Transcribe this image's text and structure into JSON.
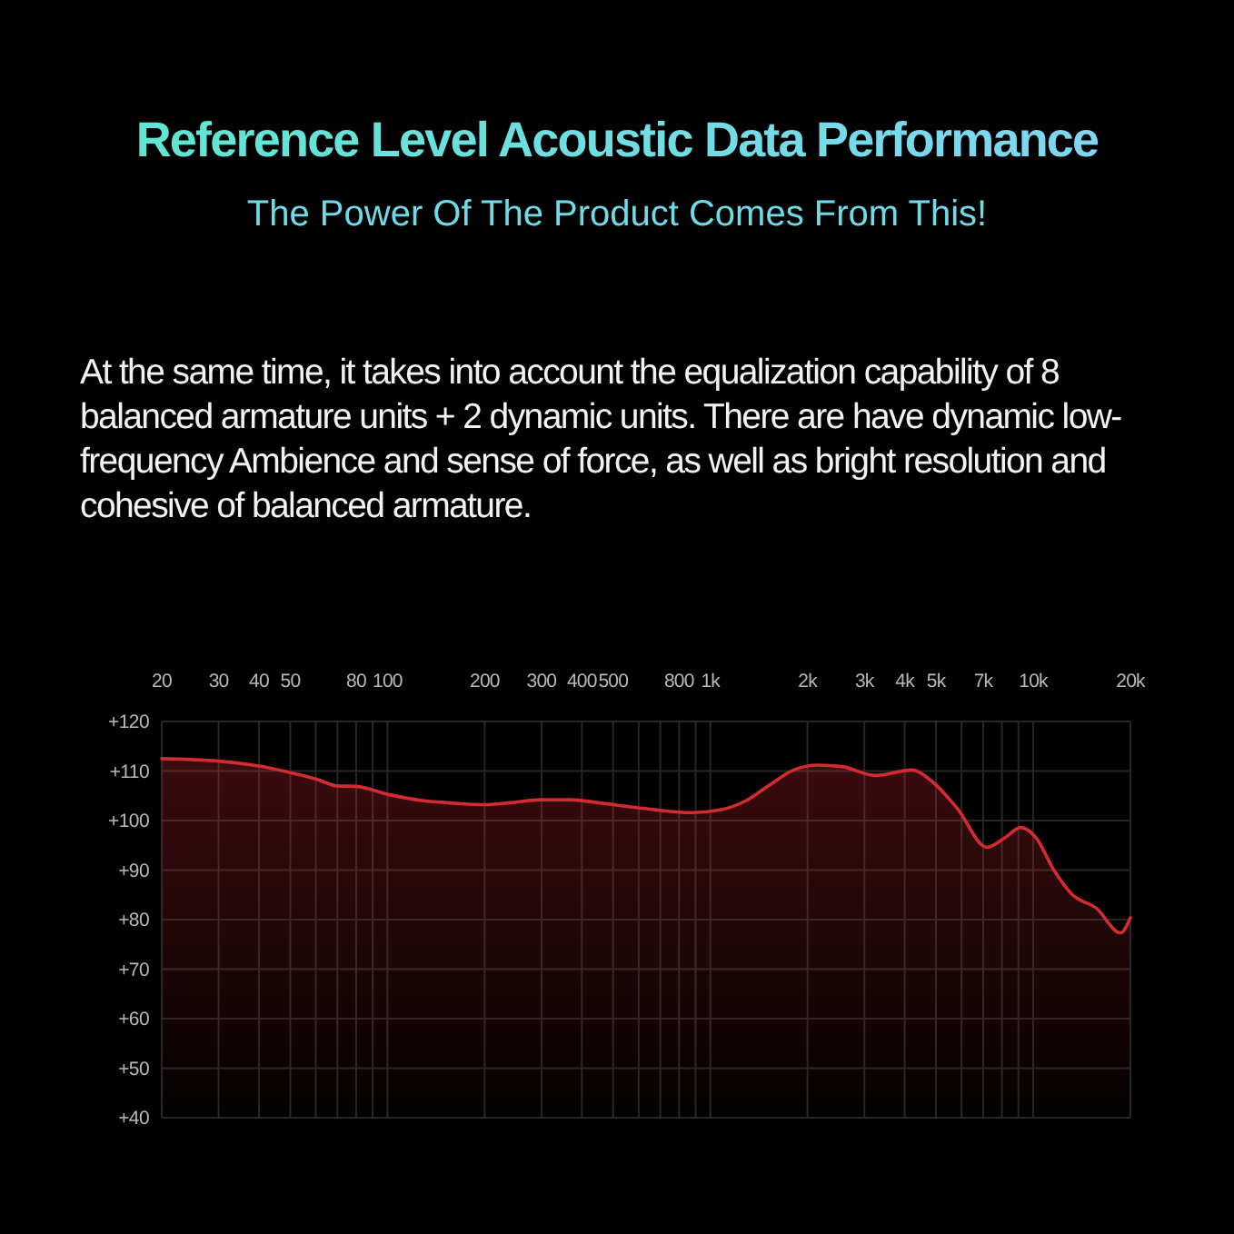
{
  "chart_data": {
    "type": "area",
    "title": "Reference Level Acoustic Data Performance",
    "subtitle": "The Power Of The Product Comes From This!",
    "annotations": [
      "At the same time, it takes into account the equalization capability of 8 balanced armature units + 2 dynamic units. There are have dynamic low-frequency Ambience and sense of force, as well as bright resolution and cohesive of balanced armature."
    ],
    "x": [
      20,
      30,
      40,
      50,
      60,
      70,
      80,
      100,
      130,
      154,
      200,
      240,
      300,
      370,
      450,
      560,
      670,
      870,
      1080,
      1280,
      1520,
      1810,
      2150,
      2560,
      3240,
      4200,
      4880,
      5810,
      7200,
      8200,
      9140,
      10180,
      11590,
      13190,
      15680,
      18640,
      20000
    ],
    "values": [
      112.5,
      112,
      111,
      109.7,
      108.4,
      107,
      106.9,
      105.3,
      104,
      103.6,
      103.2,
      103.6,
      104.2,
      104.2,
      103.6,
      102.8,
      102.2,
      101.6,
      102.2,
      103.9,
      107.1,
      110.2,
      111.2,
      110.9,
      109.1,
      110.2,
      107.8,
      102.5,
      94.6,
      96.6,
      98.6,
      96.6,
      90,
      85.1,
      82.3,
      77.3,
      80.4
    ],
    "color": "#d42a32",
    "log": "x",
    "grid": true,
    "xlim": [
      20,
      20000
    ],
    "xticks": [
      20,
      30,
      40,
      50,
      {
        "value": 60,
        "label": null
      },
      {
        "value": 70,
        "label": null
      },
      80,
      {
        "value": 90,
        "label": null
      },
      100,
      200,
      300,
      400,
      500,
      {
        "value": 600,
        "label": null
      },
      {
        "value": 700,
        "label": null
      },
      800,
      {
        "value": 900,
        "label": null
      },
      {
        "value": 1000,
        "label": "1k"
      },
      {
        "value": 2000,
        "label": "2k"
      },
      {
        "value": 3000,
        "label": "3k"
      },
      {
        "value": 4000,
        "label": "4k"
      },
      {
        "value": 5000,
        "label": "5k"
      },
      {
        "value": 6000,
        "label": null
      },
      {
        "value": 7000,
        "label": "7k"
      },
      {
        "value": 8000,
        "label": null
      },
      {
        "value": 9000,
        "label": null
      },
      {
        "value": 10000,
        "label": "10k"
      },
      {
        "value": 20000,
        "label": "20k"
      }
    ],
    "ylim": [
      40,
      120
    ],
    "yticks": [
      {
        "value": 40,
        "label": "+40"
      },
      {
        "value": 50,
        "label": "+50"
      },
      {
        "value": 60,
        "label": "+60"
      },
      {
        "value": 70,
        "label": "+70"
      },
      {
        "value": 80,
        "label": "+80"
      },
      {
        "value": 90,
        "label": "+90"
      },
      {
        "value": 100,
        "label": "+100"
      },
      {
        "value": 110,
        "label": "+110"
      },
      {
        "value": 120,
        "label": "+120"
      }
    ]
  }
}
